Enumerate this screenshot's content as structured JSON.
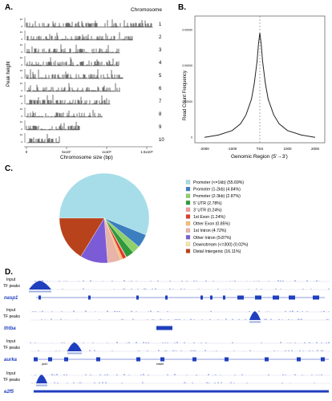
{
  "panels": {
    "a": "A.",
    "b": "B.",
    "c": "C.",
    "d": "D."
  },
  "panel_a": {
    "chromosome_header": "Chromosome",
    "chromosomes": [
      "1",
      "2",
      "3",
      "4",
      "5",
      "6",
      "7",
      "8",
      "9",
      "10"
    ],
    "ylabel": "Peak height",
    "xlabel": "Chromosome size (bp)",
    "xticks": [
      "0",
      "5x10⁷",
      "1x10⁸",
      "1.5x10⁸"
    ],
    "track_lengths": [
      1.0,
      0.84,
      0.74,
      0.73,
      0.76,
      0.74,
      0.66,
      0.6,
      0.42,
      0.26
    ],
    "yticks": [
      "10",
      "0"
    ],
    "peak_color": "#111111"
  },
  "chart_data": [
    {
      "type": "line",
      "xlabel": "Genomic Region (5'→3')",
      "ylabel": "Read Count Frequency",
      "xticks": [
        "-2000",
        "-1000",
        "TSS",
        "1000",
        "2000"
      ],
      "yticks": [
        "0",
        "0.00000",
        "0.00000",
        "0.00000"
      ],
      "x": [
        -2000,
        -1500,
        -1000,
        -700,
        -500,
        -300,
        -200,
        -100,
        -50,
        0,
        50,
        100,
        200,
        300,
        500,
        700,
        1000,
        1500,
        2000
      ],
      "y": [
        0.02,
        0.04,
        0.08,
        0.14,
        0.22,
        0.36,
        0.5,
        0.7,
        0.85,
        0.95,
        0.85,
        0.7,
        0.5,
        0.36,
        0.22,
        0.14,
        0.08,
        0.04,
        0.02
      ],
      "ylim": [
        0,
        1
      ],
      "tss_line": true
    },
    {
      "type": "pie",
      "categories": [
        "Promoter (<=1kb)",
        "Promoter (1-2kb)",
        "Promoter (2-3kb)",
        "5' UTR",
        "3' UTR",
        "1st Exon",
        "Other Exon",
        "1st Intron",
        "Other Intron",
        "Downstream (<=300)",
        "Distal Intergenic"
      ],
      "legend_labels": [
        "Promoter (<=1kb) (55.69%)",
        "Promoter (1-2kb) (4.84%)",
        "Promoter (2-3kb) (2.87%)",
        "5' UTR (2.78%)",
        "3' UTR (0.24%)",
        "1st Exon (1.24%)",
        "Other Exon (0.85%)",
        "1st Intron (4.72%)",
        "Other Intron (9.87%)",
        "Downstream (<=300) (0.02%)",
        "Distal Intergenic (16.11%)"
      ],
      "values": [
        55.69,
        4.84,
        2.87,
        2.78,
        0.24,
        1.24,
        0.85,
        4.72,
        9.87,
        0.02,
        16.11
      ],
      "colors": [
        "#a6dde8",
        "#3b7fc0",
        "#8fd06a",
        "#2e9a3a",
        "#f19a9a",
        "#e23a2a",
        "#f7be6b",
        "#e8b4a8",
        "#7b5bd6",
        "#f7e8a6",
        "#b8421c"
      ],
      "legend_placement": "right"
    }
  ],
  "panel_d": {
    "track_color": "#1f3fbf",
    "gene_color": "#1f3fbf",
    "groups": [
      {
        "input_label": "Input",
        "peaks_label": "TF peaks",
        "gene_label": "nasp1"
      },
      {
        "input_label": "Input",
        "peaks_label": "TF peaks",
        "gene_label": "thtba"
      },
      {
        "input_label": "Input",
        "peaks_label": "TF peaks",
        "gene_label": "aurka"
      },
      {
        "input_label": "Input",
        "peaks_label": "TF peaks",
        "gene_label": "e2f5"
      }
    ],
    "aurka_small_labels": [
      "pklr1",
      "elavlb"
    ]
  }
}
